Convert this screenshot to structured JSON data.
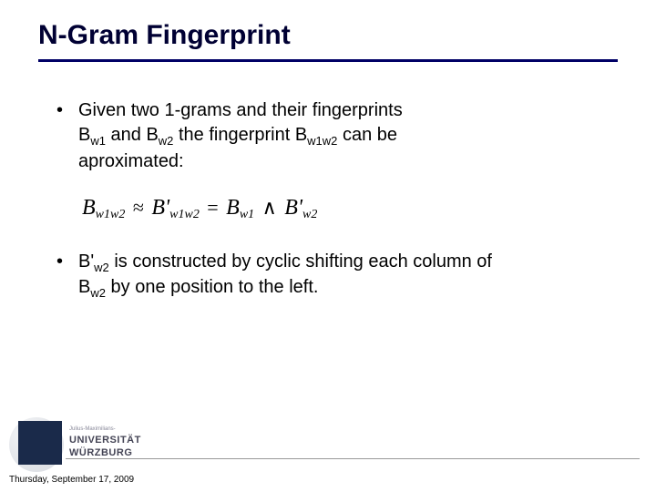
{
  "title": "N-Gram Fingerprint",
  "bullets": {
    "b1_line1": "Given two 1-grams and their fingerprints",
    "b1_line2a": "B",
    "b1_sub1": "w1",
    "b1_line2b": " and B",
    "b1_sub2": "w2",
    "b1_line2c": " the fingerprint B",
    "b1_sub3": "w1w2",
    "b1_line2d": " can be",
    "b1_line3": "aproximated:",
    "b2_a": "B'",
    "b2_sub1": "w2",
    "b2_b": " is constructed by cyclic shifting each column of",
    "b2_c": "B",
    "b2_sub2": "w2",
    "b2_d": " by one position to the left."
  },
  "formula": {
    "B": "B",
    "s1": "w1w2",
    "approx": "≈",
    "Bp": "B'",
    "s2": "w1w2",
    "eq": "=",
    "B2": "B",
    "s3": "w1",
    "and": "∧",
    "Bp2": "B'",
    "s4": "w2"
  },
  "university": {
    "top": "Julius-Maximilians-",
    "line1": "UNIVERSITÄT",
    "line2": "WÜRZBURG"
  },
  "date": "Thursday, September 17, 2009",
  "colors": {
    "title": "#000033",
    "underline": "#000066",
    "logo_bg": "#1a2a4a"
  }
}
